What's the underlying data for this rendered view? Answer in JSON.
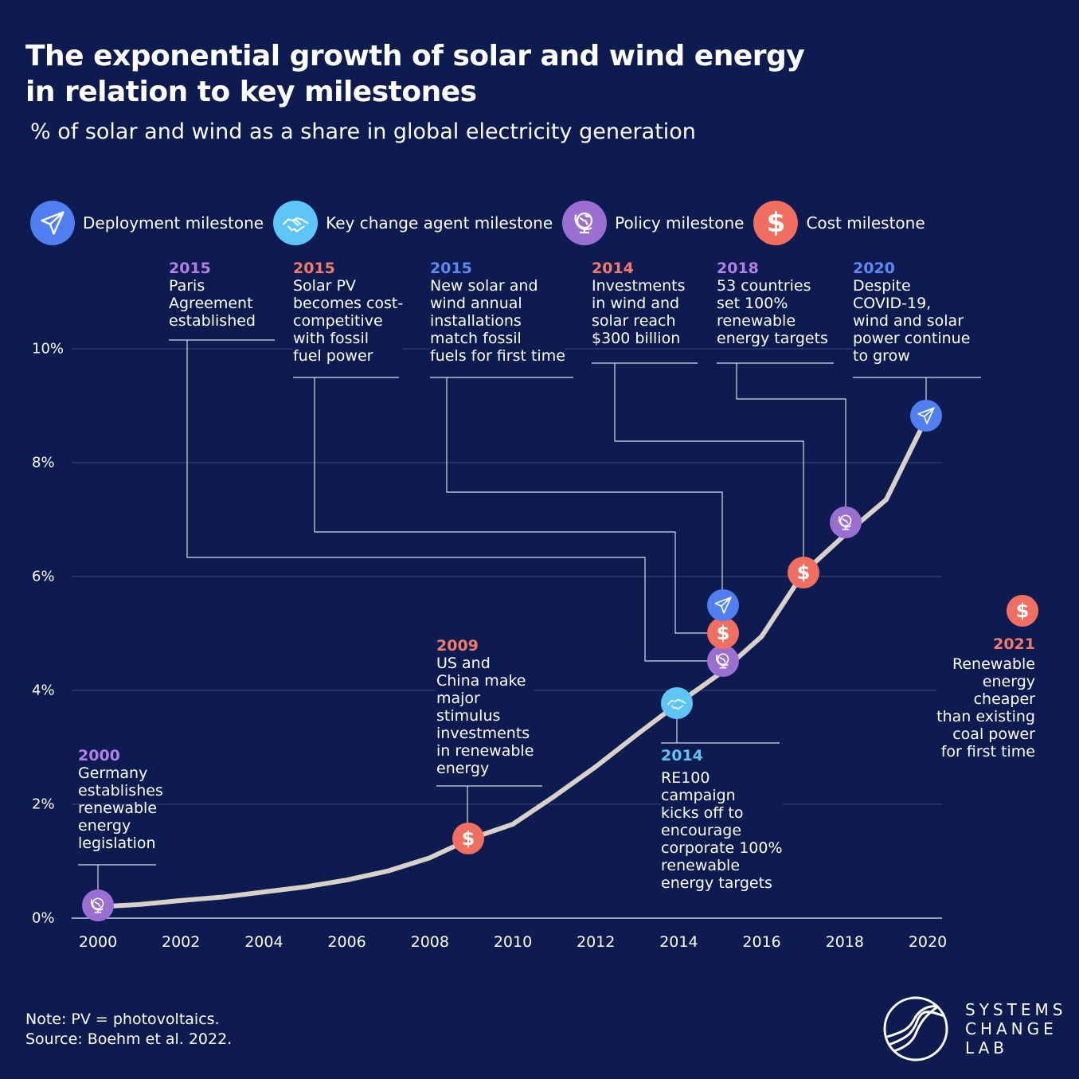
{
  "title_line1": "The exponential growth of solar and wind energy",
  "title_line2": "in relation to key milestones",
  "subtitle": "% of solar and wind as a share in global electricity generation",
  "legend": [
    {
      "type": "deployment",
      "label": "Deployment milestone",
      "icon": "paper-plane-icon",
      "color": "#4f7ff0"
    },
    {
      "type": "agent",
      "label": "Key change agent milestone",
      "icon": "handshake-icon",
      "color": "#5ec5f7"
    },
    {
      "type": "policy",
      "label": "Policy milestone",
      "icon": "globe-icon",
      "color": "#9b6fd2"
    },
    {
      "type": "cost",
      "label": "Cost milestone",
      "icon": "dollar-icon",
      "color": "#f26e5e"
    }
  ],
  "milestones": [
    {
      "year": "2000",
      "type": "policy",
      "text": "Germany\nestablishes\nrenewable\nenergy\nlegislation"
    },
    {
      "year": "2009",
      "type": "cost",
      "text": "US and\nChina make\nmajor\nstimulus\ninvestments\nin renewable\nenergy"
    },
    {
      "year": "2014",
      "type": "agent",
      "text": "RE100\ncampaign\nkicks off to\nencourage\ncorporate 100%\nrenewable\nenergy targets"
    },
    {
      "year": "2015",
      "type": "policy",
      "text": "Paris\nAgreement\nestablished"
    },
    {
      "year": "2015",
      "type": "cost",
      "text": "Solar PV\nbecomes cost-\ncompetitive\nwith fossil\nfuel power"
    },
    {
      "year": "2015",
      "type": "deployment",
      "text": "New solar and\nwind annual\ninstallations\nmatch fossil\nfuels for first time"
    },
    {
      "year": "2014",
      "type": "cost",
      "text": "Investments\nin wind and\nsolar reach\n$300 billion"
    },
    {
      "year": "2018",
      "type": "policy",
      "text": "53 countries\nset 100%\nrenewable\nenergy targets"
    },
    {
      "year": "2020",
      "type": "deployment",
      "text": "Despite\nCOVID-19,\nwind and solar\npower continue\nto grow"
    },
    {
      "year": "2021",
      "type": "cost",
      "text": "Renewable\nenergy\ncheaper\nthan existing\ncoal power\nfor first time"
    }
  ],
  "chart_data": {
    "type": "line",
    "title": "The exponential growth of solar and wind energy in relation to key milestones",
    "subtitle": "% of solar and wind as a share in global electricity generation",
    "x": [
      2000,
      2001,
      2002,
      2003,
      2004,
      2005,
      2006,
      2007,
      2008,
      2009,
      2010,
      2011,
      2012,
      2013,
      2014,
      2015,
      2016,
      2017,
      2018,
      2019,
      2020
    ],
    "y": [
      0.2,
      0.24,
      0.31,
      0.37,
      0.46,
      0.55,
      0.67,
      0.83,
      1.06,
      1.4,
      1.65,
      2.14,
      2.66,
      3.23,
      3.78,
      4.3,
      4.95,
      6.06,
      6.73,
      7.35,
      8.83
    ],
    "xlim": [
      2000,
      2020
    ],
    "ylim": [
      0,
      10
    ],
    "x_ticks": [
      "2000",
      "2002",
      "2004",
      "2006",
      "2008",
      "2010",
      "2012",
      "2014",
      "2016",
      "2018",
      "2020"
    ],
    "y_ticks": [
      "0%",
      "2%",
      "4%",
      "6%",
      "8%",
      "10%"
    ],
    "grid": "horizontal",
    "line_color": "#d9d0c7"
  },
  "note": "Note: PV = photovoltaics.",
  "source": "Source: Boehm et al. 2022.",
  "logo": {
    "line1": "SYSTEMS",
    "line2": "CHANGE",
    "line3": "LAB"
  }
}
